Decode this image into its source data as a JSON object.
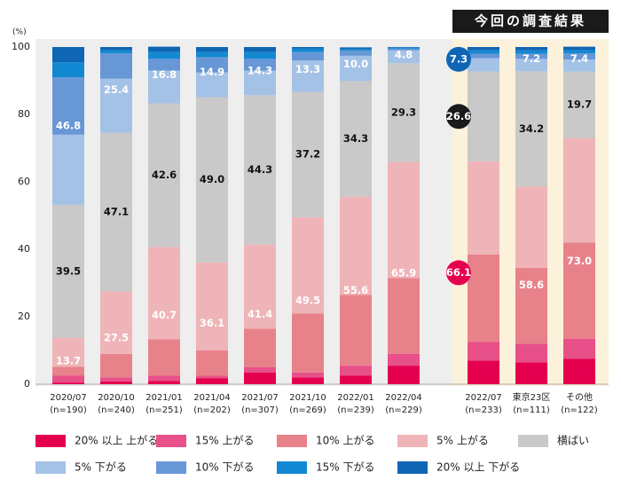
{
  "chart_data": {
    "type": "stacked_bar",
    "highlight_title": "今回の調査結果",
    "y_unit": "(%)",
    "ylim": [
      0,
      100
    ],
    "yticks": [
      0,
      20,
      40,
      60,
      80,
      100
    ],
    "categories": [
      "2020/07",
      "2020/10",
      "2021/01",
      "2021/04",
      "2021/07",
      "2021/10",
      "2022/01",
      "2022/04",
      "2022/07",
      "東京23区",
      "その他"
    ],
    "sample_sizes": [
      "(n=190)",
      "(n=240)",
      "(n=251)",
      "(n=202)",
      "(n=307)",
      "(n=269)",
      "(n=239)",
      "(n=229)",
      "(n=233)",
      "(n=111)",
      "(n=122)"
    ],
    "series": [
      {
        "name": "20% 以上 上がる",
        "color": "#e5004f",
        "values": [
          0.5,
          0.8,
          1.0,
          1.8,
          3.5,
          2.0,
          2.5,
          5.5,
          7.0,
          6.5,
          7.5
        ]
      },
      {
        "name": "15% 上がる",
        "color": "#e8508a",
        "values": [
          2.1,
          1.2,
          1.5,
          0.7,
          1.5,
          1.5,
          3.0,
          3.5,
          5.5,
          5.5,
          6.0
        ]
      },
      {
        "name": "10% 上がる",
        "color": "#e8828a",
        "values": [
          2.6,
          7.0,
          10.8,
          7.5,
          11.5,
          17.5,
          21.0,
          22.5,
          26.0,
          22.5,
          28.5
        ]
      },
      {
        "name": "5% 上がる",
        "color": "#eeb4b8",
        "values": [
          8.5,
          18.5,
          27.4,
          26.1,
          24.9,
          28.5,
          29.1,
          34.4,
          27.6,
          24.1,
          31.0
        ]
      },
      {
        "name": "横ばい",
        "color": "#c9c9c9",
        "values": [
          39.5,
          47.1,
          42.6,
          49.0,
          44.3,
          37.2,
          34.3,
          29.3,
          26.6,
          34.2,
          19.7
        ],
        "value_labels": [
          "39.5",
          "47.1",
          "42.6",
          "49.0",
          "44.3",
          "37.2",
          "34.3",
          "29.3",
          "26.6",
          "34.2",
          "19.7"
        ]
      },
      {
        "name": "5% 下がる",
        "color": "#a4c2e5",
        "values": [
          20.8,
          16.0,
          9.7,
          7.4,
          7.3,
          9.3,
          7.5,
          3.8,
          4.0,
          3.7,
          3.6
        ]
      },
      {
        "name": "10% 下がる",
        "color": "#6897d6",
        "values": [
          17.0,
          7.5,
          3.5,
          4.5,
          3.5,
          2.5,
          1.5,
          0.5,
          1.3,
          1.5,
          1.8
        ]
      },
      {
        "name": "15% 下がる",
        "color": "#1388d2",
        "values": [
          4.5,
          0.9,
          2.0,
          1.5,
          2.0,
          1.0,
          0.5,
          0.3,
          1.0,
          1.0,
          1.0
        ]
      },
      {
        "name": "20% 以上 下がる",
        "color": "#0f66b4",
        "values": [
          4.5,
          1.0,
          1.6,
          1.5,
          1.5,
          0.5,
          0.5,
          0.2,
          1.0,
          1.0,
          1.0
        ]
      }
    ],
    "rise_totals": [
      13.7,
      27.5,
      40.7,
      36.1,
      41.4,
      49.5,
      55.6,
      65.9,
      66.1,
      58.6,
      {
        "value": 73,
        "label": "73.0"
      }
    ],
    "fall_totals": [
      46.8,
      25.4,
      16.8,
      14.9,
      14.3,
      13.3,
      {
        "value": 10,
        "label": "10.0"
      },
      4.8,
      7.3,
      7.2,
      7.4
    ]
  }
}
